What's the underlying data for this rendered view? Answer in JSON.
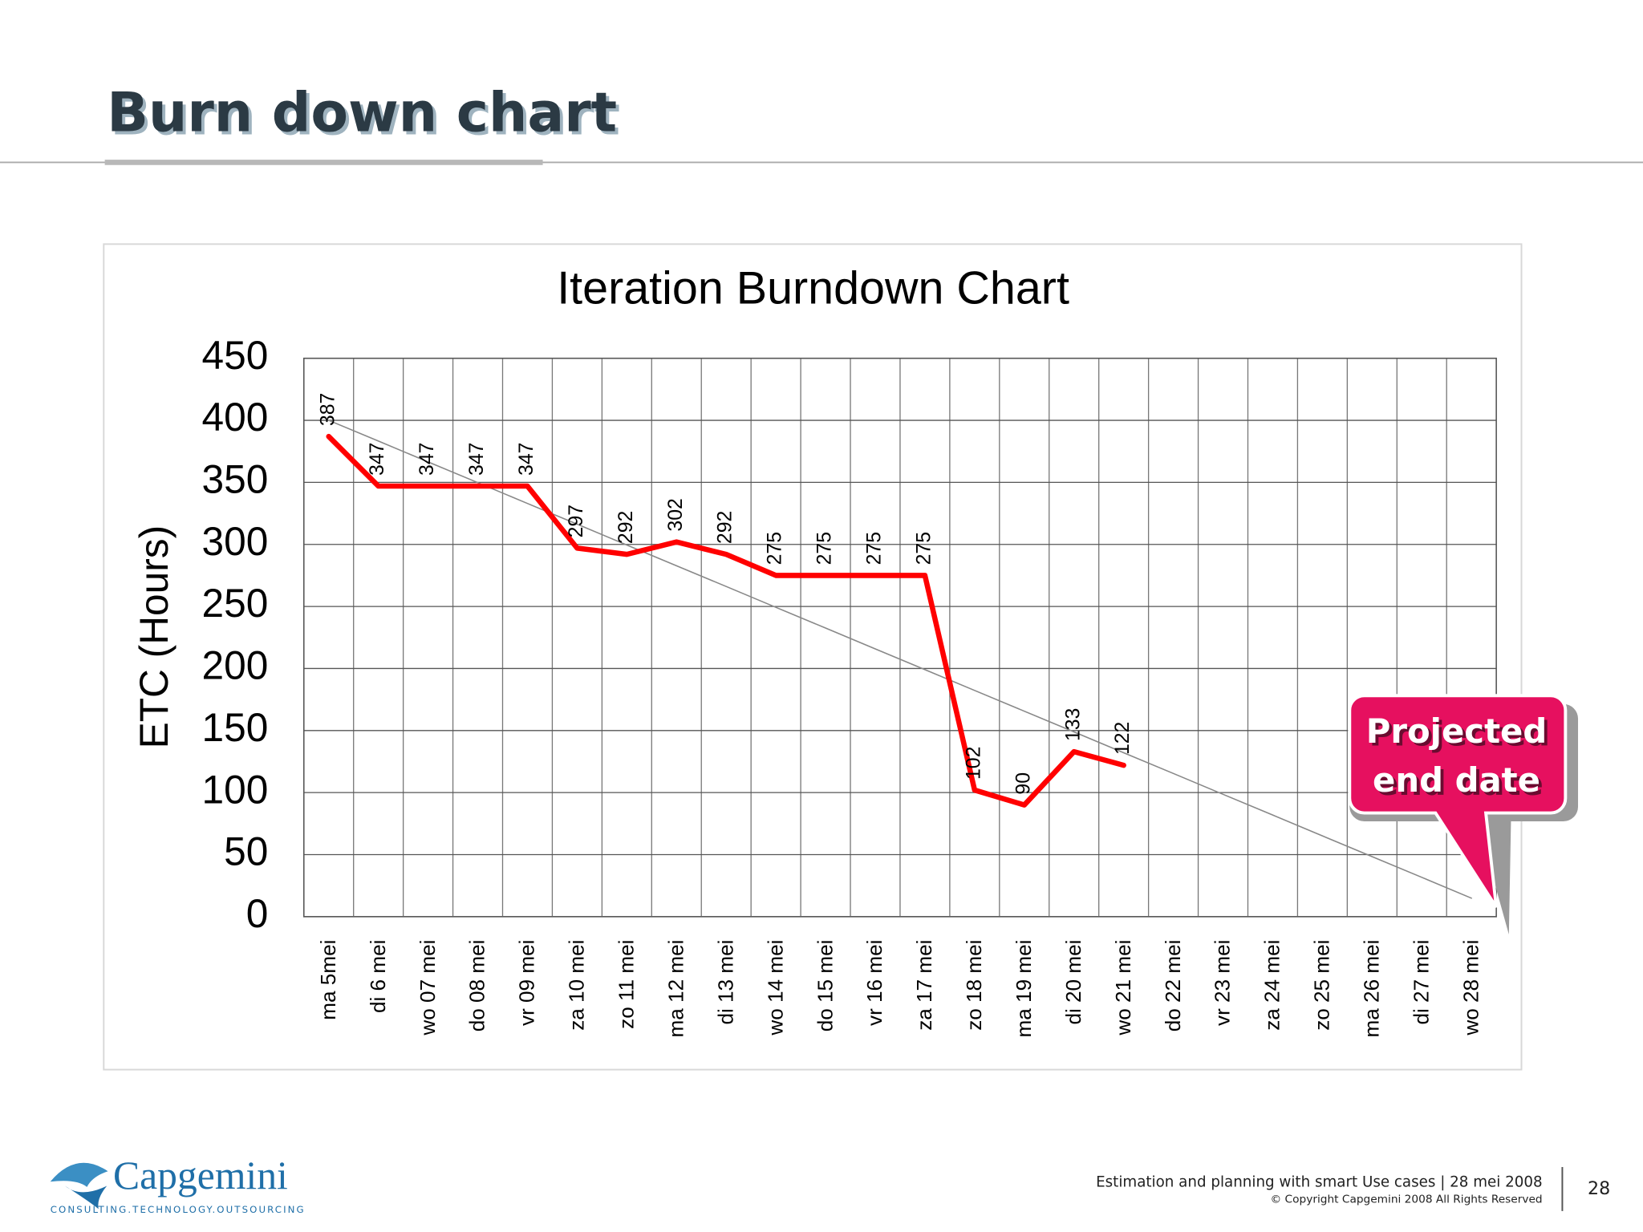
{
  "header": {
    "title": "Burn down chart"
  },
  "chart_data": {
    "type": "line",
    "title": "Iteration Burndown Chart",
    "y_label": "ETC (Hours)",
    "categories": [
      "ma 5mei",
      "di 6 mei",
      "wo 07 mei",
      "do 08 mei",
      "vr 09 mei",
      "za 10 mei",
      "zo 11 mei",
      "ma 12 mei",
      "di 13 mei",
      "wo 14 mei",
      "do 15 mei",
      "vr 16 mei",
      "za 17 mei",
      "zo 18 mei",
      "ma 19 mei",
      "di 20 mei",
      "wo 21 mei",
      "do 22 mei",
      "vr 23 mei",
      "za 24 mei",
      "zo 25 mei",
      "ma 26 mei",
      "di 27 mei",
      "wo 28 mei"
    ],
    "series": [
      {
        "color": "#ff0000",
        "values": [
          387,
          347,
          347,
          347,
          347,
          297,
          292,
          302,
          292,
          275,
          275,
          275,
          275,
          102,
          90,
          133,
          122,
          null,
          null,
          null,
          null,
          null,
          null,
          null
        ]
      },
      {
        "color": "#888888",
        "values": [
          400,
          383.3,
          366.5,
          349.8,
          333,
          316.3,
          299.5,
          282.8,
          266.1,
          249.3,
          232.6,
          215.8,
          199.1,
          182.3,
          165.6,
          148.9,
          132.1,
          115.4,
          98.6,
          81.9,
          65.1,
          48.4,
          31.7,
          14.9
        ]
      }
    ],
    "ylim": [
      0,
      450
    ],
    "yticks": [
      0,
      50,
      100,
      150,
      200,
      250,
      300,
      350,
      400,
      450
    ],
    "grid": true,
    "annotations": [
      "Projected",
      "end date"
    ]
  },
  "footer": {
    "logo": "Capgemini",
    "tagline": "CONSULTING.TECHNOLOGY.OUTSOURCING",
    "text": "Estimation and planning with smart Use cases | 28 mei 2008",
    "copyright": "© Copyright Capgemini 2008 All Rights Reserved",
    "page": "28"
  }
}
